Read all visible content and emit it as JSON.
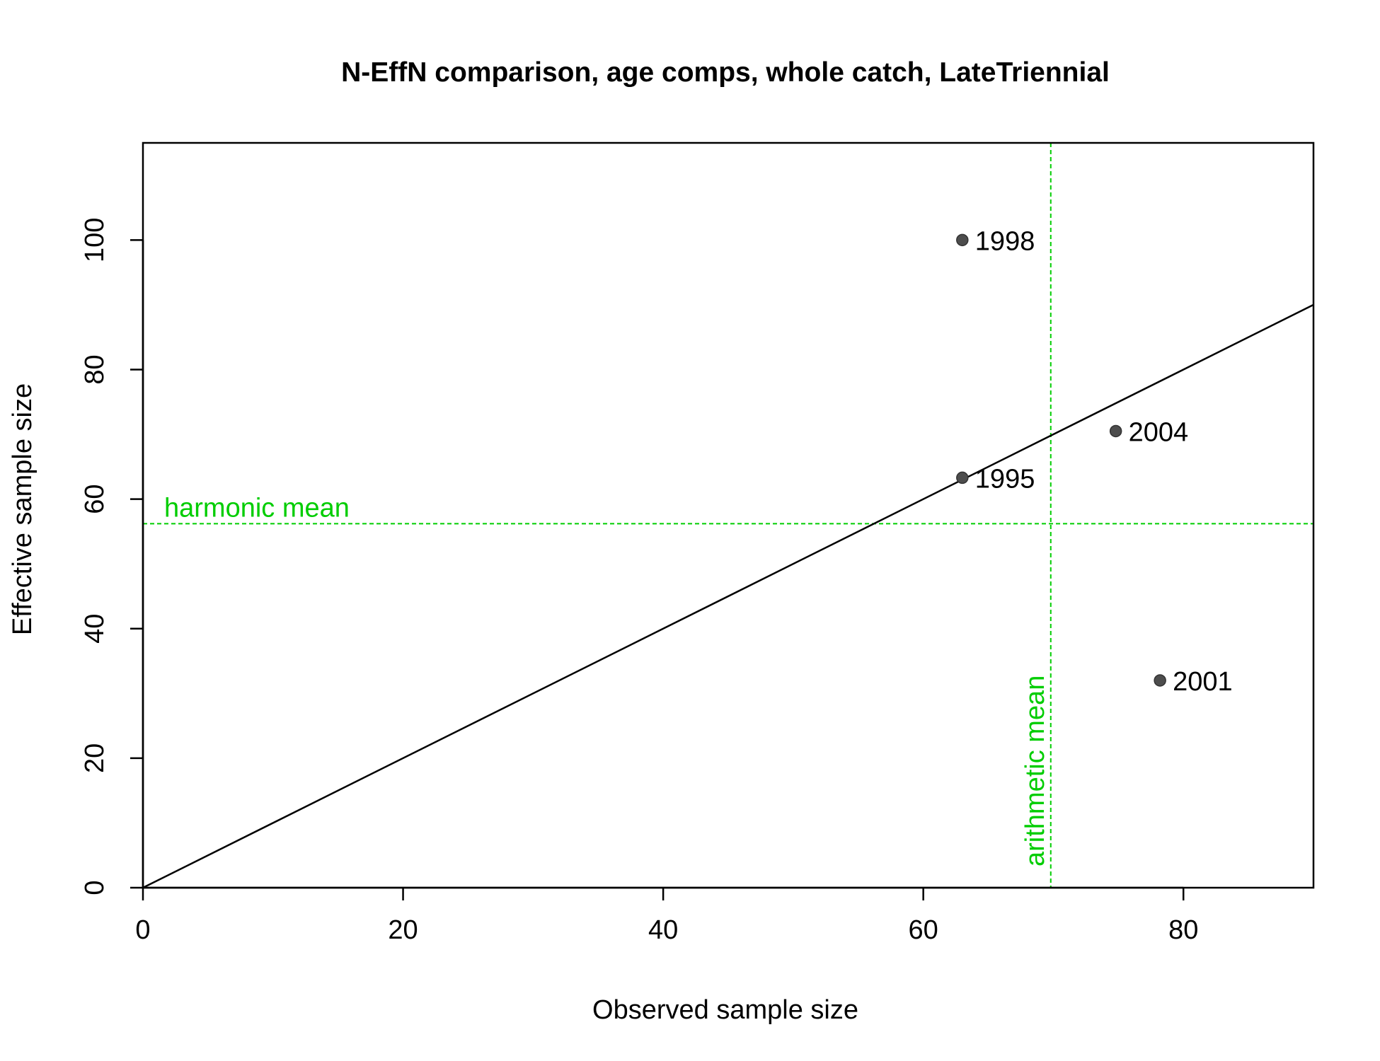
{
  "colors": {
    "reference": "#00cd00",
    "points": "#4d4d4d",
    "axis": "#000000"
  },
  "chart_data": {
    "type": "scatter",
    "title": "N-EffN comparison, age comps, whole catch, LateTriennial",
    "xlabel": "Observed sample size",
    "ylabel": "Effective sample size",
    "xlim": [
      0,
      90
    ],
    "ylim": [
      0,
      115
    ],
    "xticks": [
      "0",
      "20",
      "40",
      "60",
      "80"
    ],
    "yticks": [
      "0",
      "20",
      "40",
      "60",
      "80",
      "100"
    ],
    "grid": false,
    "points": [
      {
        "label": "1995",
        "x": 63,
        "y": 63.3
      },
      {
        "label": "1998",
        "x": 63,
        "y": 100
      },
      {
        "label": "2001",
        "x": 78.2,
        "y": 32
      },
      {
        "label": "2004",
        "x": 74.8,
        "y": 70.5
      }
    ],
    "one_to_one_line": true,
    "harmonic_mean": {
      "label": "harmonic mean",
      "value": 56.2
    },
    "arithmetic_mean": {
      "label": "arithmetic mean",
      "value": 69.8
    }
  }
}
